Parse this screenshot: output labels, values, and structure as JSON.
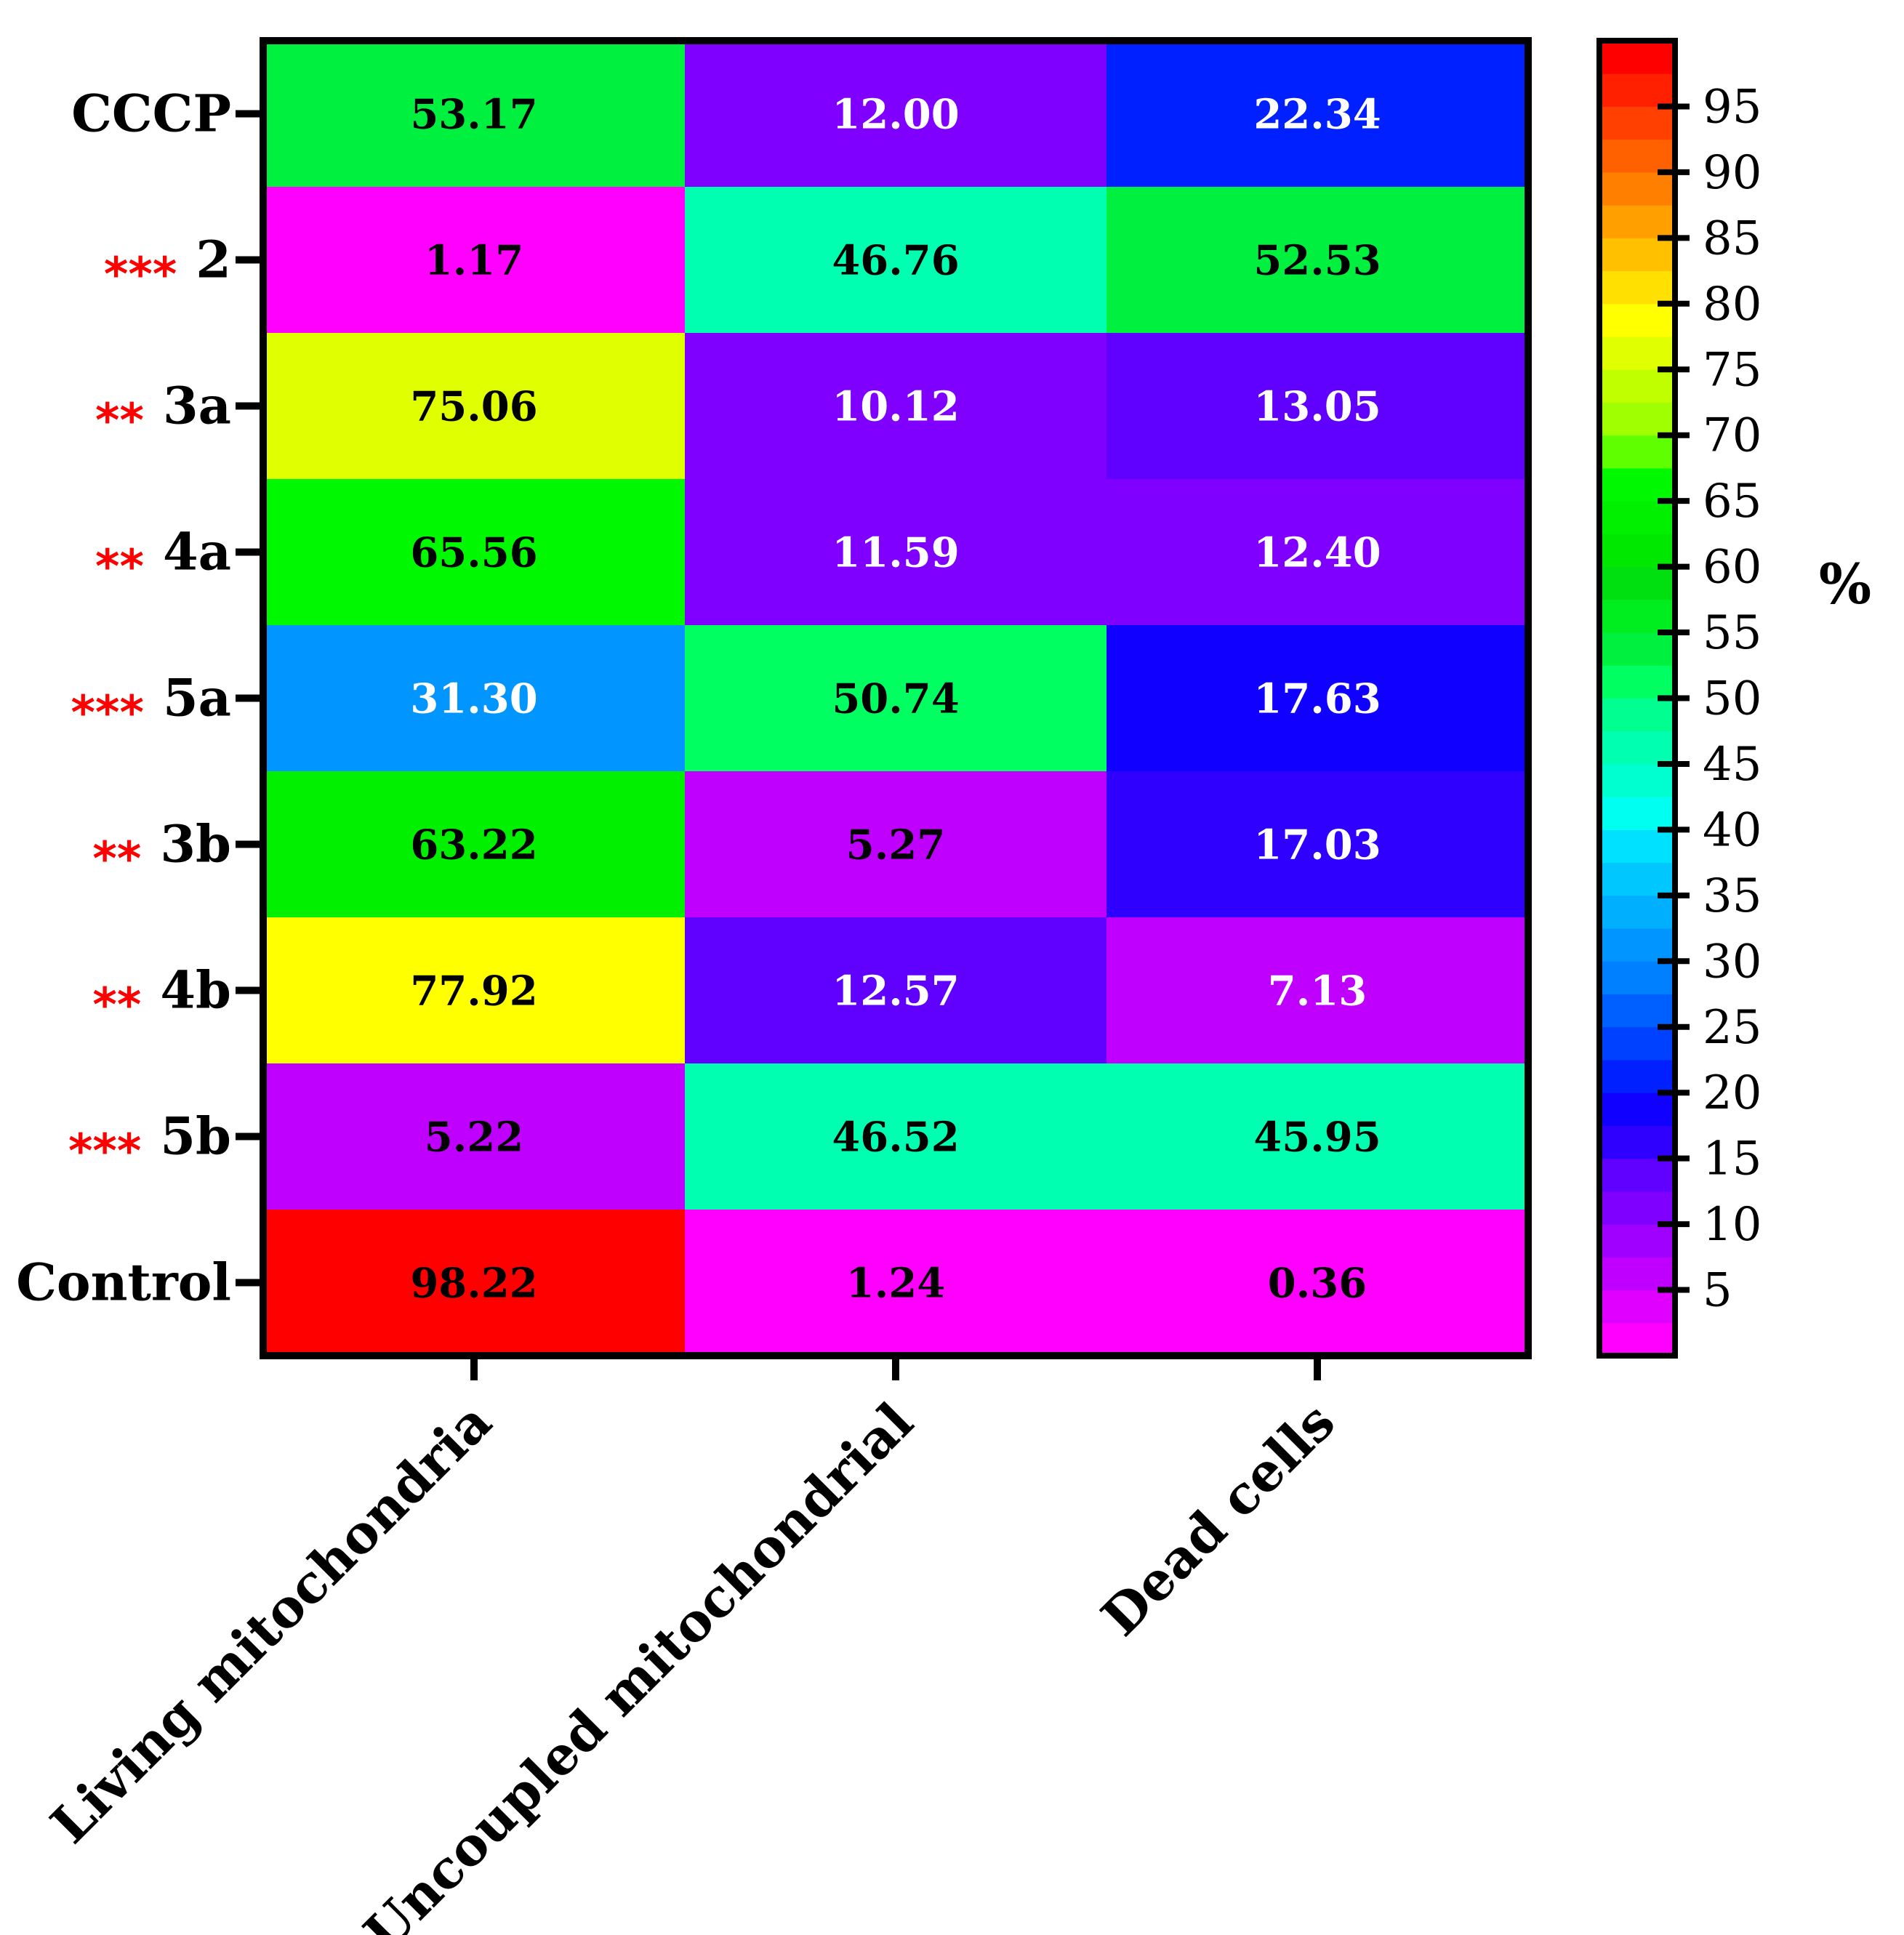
{
  "chart_data": {
    "type": "heatmap",
    "rows": [
      {
        "label": "CCCP",
        "sig": ""
      },
      {
        "label": "2",
        "sig": "***"
      },
      {
        "label": "3a",
        "sig": "**"
      },
      {
        "label": "4a",
        "sig": "**"
      },
      {
        "label": "5a",
        "sig": "***"
      },
      {
        "label": "3b",
        "sig": "**"
      },
      {
        "label": "4b",
        "sig": "**"
      },
      {
        "label": "5b",
        "sig": "***"
      },
      {
        "label": "Control",
        "sig": ""
      }
    ],
    "columns": [
      "Living mitochondria",
      "Uncoupled mitochondrial",
      "Dead cells"
    ],
    "values": [
      [
        53.17,
        12.0,
        22.34
      ],
      [
        1.17,
        46.76,
        52.53
      ],
      [
        75.06,
        10.12,
        13.05
      ],
      [
        65.56,
        11.59,
        12.4
      ],
      [
        31.3,
        50.74,
        17.63
      ],
      [
        63.22,
        5.27,
        17.03
      ],
      [
        77.92,
        12.57,
        7.13
      ],
      [
        5.22,
        46.52,
        45.95
      ],
      [
        98.22,
        1.24,
        0.36
      ]
    ],
    "value_labels": [
      [
        "53.17",
        "12.00",
        "22.34"
      ],
      [
        "1.17",
        "46.76",
        "52.53"
      ],
      [
        "75.06",
        "10.12",
        "13.05"
      ],
      [
        "65.56",
        "11.59",
        "12.40"
      ],
      [
        "31.30",
        "50.74",
        "17.63"
      ],
      [
        "63.22",
        "5.27",
        "17.03"
      ],
      [
        "77.92",
        "12.57",
        "7.13"
      ],
      [
        "5.22",
        "46.52",
        "45.95"
      ],
      [
        "98.22",
        "1.24",
        "0.36"
      ]
    ],
    "colorbar": {
      "title": "%",
      "ticks": [
        5,
        10,
        15,
        20,
        25,
        30,
        35,
        40,
        45,
        50,
        55,
        60,
        65,
        70,
        75,
        80,
        85,
        90,
        95
      ],
      "range": [
        0,
        100
      ],
      "bins": [
        {
          "min": 0,
          "max": 2.5,
          "color": "#ff00ff"
        },
        {
          "min": 2.5,
          "max": 5,
          "color": "#e000ff"
        },
        {
          "min": 5,
          "max": 7.5,
          "color": "#c000ff"
        },
        {
          "min": 7.5,
          "max": 10,
          "color": "#9f00ff"
        },
        {
          "min": 10,
          "max": 12.5,
          "color": "#8000ff"
        },
        {
          "min": 12.5,
          "max": 15,
          "color": "#6000ff"
        },
        {
          "min": 15,
          "max": 17.5,
          "color": "#3000ff"
        },
        {
          "min": 17.5,
          "max": 20,
          "color": "#1000ff"
        },
        {
          "min": 20,
          "max": 22.5,
          "color": "#0020ff"
        },
        {
          "min": 22.5,
          "max": 25,
          "color": "#0040ff"
        },
        {
          "min": 25,
          "max": 27.5,
          "color": "#0060ff"
        },
        {
          "min": 27.5,
          "max": 30,
          "color": "#0080ff"
        },
        {
          "min": 30,
          "max": 32.5,
          "color": "#0095ff"
        },
        {
          "min": 32.5,
          "max": 35,
          "color": "#00b0ff"
        },
        {
          "min": 35,
          "max": 37.5,
          "color": "#00c8ff"
        },
        {
          "min": 37.5,
          "max": 40,
          "color": "#00e0ff"
        },
        {
          "min": 40,
          "max": 42.5,
          "color": "#00fff0"
        },
        {
          "min": 42.5,
          "max": 45,
          "color": "#00ffd0"
        },
        {
          "min": 45,
          "max": 47.5,
          "color": "#00ffb0"
        },
        {
          "min": 47.5,
          "max": 50,
          "color": "#00ff90"
        },
        {
          "min": 50,
          "max": 52.5,
          "color": "#00ff60"
        },
        {
          "min": 52.5,
          "max": 55,
          "color": "#00f040"
        },
        {
          "min": 55,
          "max": 57.5,
          "color": "#00ee20"
        },
        {
          "min": 57.5,
          "max": 60,
          "color": "#00e010"
        },
        {
          "min": 60,
          "max": 62.5,
          "color": "#00e800"
        },
        {
          "min": 62.5,
          "max": 65,
          "color": "#00f000"
        },
        {
          "min": 65,
          "max": 67.5,
          "color": "#00f800"
        },
        {
          "min": 67.5,
          "max": 70,
          "color": "#60ff00"
        },
        {
          "min": 70,
          "max": 72.5,
          "color": "#a0ff00"
        },
        {
          "min": 72.5,
          "max": 75,
          "color": "#c0ff00"
        },
        {
          "min": 75,
          "max": 77.5,
          "color": "#e0ff00"
        },
        {
          "min": 77.5,
          "max": 80,
          "color": "#ffff00"
        },
        {
          "min": 80,
          "max": 82.5,
          "color": "#ffe000"
        },
        {
          "min": 82.5,
          "max": 85,
          "color": "#ffc000"
        },
        {
          "min": 85,
          "max": 87.5,
          "color": "#ffa000"
        },
        {
          "min": 87.5,
          "max": 90,
          "color": "#ff8000"
        },
        {
          "min": 90,
          "max": 92.5,
          "color": "#ff6000"
        },
        {
          "min": 92.5,
          "max": 95,
          "color": "#ff4000"
        },
        {
          "min": 95,
          "max": 97.5,
          "color": "#ff2000"
        },
        {
          "min": 97.5,
          "max": 100,
          "color": "#ff0000"
        }
      ]
    },
    "dark_text_color": "#000000",
    "light_text_color": "#ffffff"
  }
}
